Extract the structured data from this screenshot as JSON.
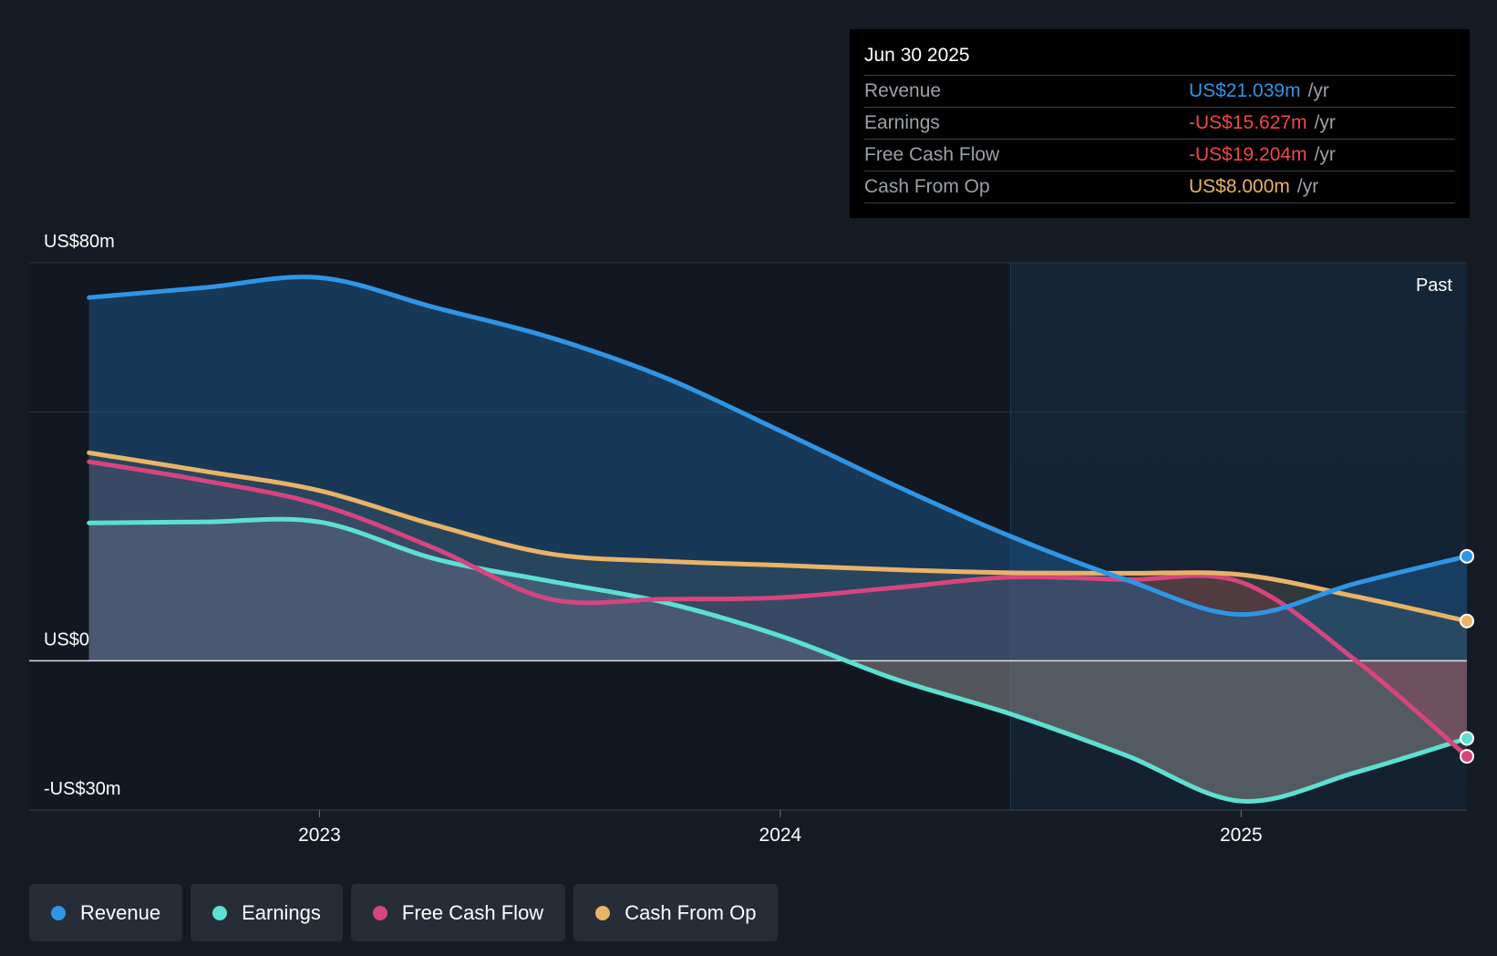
{
  "tooltip": {
    "date": "Jun 30 2025",
    "rows": [
      {
        "name": "Revenue",
        "value": "US$21.039m",
        "unit": "/yr",
        "color": "#2f95e6"
      },
      {
        "name": "Earnings",
        "value": "-US$15.627m",
        "unit": "/yr",
        "color": "#f0474d"
      },
      {
        "name": "Free Cash Flow",
        "value": "-US$19.204m",
        "unit": "/yr",
        "color": "#f0474d"
      },
      {
        "name": "Cash From Op",
        "value": "US$8.000m",
        "unit": "/yr",
        "color": "#e9b368"
      }
    ]
  },
  "legend": [
    {
      "label": "Revenue",
      "color": "#2f95e6"
    },
    {
      "label": "Earnings",
      "color": "#5ce0d2"
    },
    {
      "label": "Free Cash Flow",
      "color": "#d6457f"
    },
    {
      "label": "Cash From Op",
      "color": "#e9b368"
    }
  ],
  "chart_data": {
    "type": "area",
    "title": "",
    "y_labels": {
      "top": "US$80m",
      "zero": "US$0",
      "bottom": "-US$30m"
    },
    "ylim": [
      -30,
      80
    ],
    "xlim": [
      2022.37,
      2025.49
    ],
    "x_ticks": [
      2023,
      2024,
      2025
    ],
    "x_tick_labels": [
      "2023",
      "2024",
      "2025"
    ],
    "past_label": "Past",
    "past_start": 2024.5,
    "series": [
      {
        "name": "Earnings",
        "color": "#5ce0d2",
        "x": [
          2022.5,
          2022.75,
          2023.0,
          2023.25,
          2023.5,
          2023.75,
          2024.0,
          2024.25,
          2024.5,
          2024.75,
          2025.0,
          2025.25,
          2025.49
        ],
        "values": [
          27.7,
          27.9,
          27.9,
          20.5,
          16.0,
          11.7,
          5.0,
          -3.7,
          -10.7,
          -19.0,
          -28.2,
          -22.4,
          -15.6
        ]
      },
      {
        "name": "Free Cash Flow",
        "color": "#d6457f",
        "x": [
          2022.5,
          2022.75,
          2023.0,
          2023.25,
          2023.5,
          2023.75,
          2024.0,
          2024.25,
          2024.5,
          2024.75,
          2025.0,
          2025.25,
          2025.49
        ],
        "values": [
          40.0,
          36.2,
          31.4,
          22.6,
          12.4,
          12.4,
          12.7,
          14.7,
          16.8,
          16.3,
          15.8,
          0.0,
          -19.2
        ]
      },
      {
        "name": "Cash From Op",
        "color": "#e9b368",
        "x": [
          2022.5,
          2022.75,
          2023.0,
          2023.25,
          2023.5,
          2023.75,
          2024.0,
          2024.25,
          2024.5,
          2024.75,
          2025.0,
          2025.25,
          2025.49
        ],
        "values": [
          41.8,
          38.1,
          34.2,
          27.3,
          21.5,
          20.0,
          19.2,
          18.3,
          17.7,
          17.6,
          17.3,
          12.9,
          8.0
        ]
      },
      {
        "name": "Revenue",
        "color": "#2f95e6",
        "x": [
          2022.5,
          2022.75,
          2023.0,
          2023.25,
          2023.5,
          2023.75,
          2024.0,
          2024.25,
          2024.5,
          2024.75,
          2025.0,
          2025.25,
          2025.49
        ],
        "values": [
          73.0,
          75.0,
          77.0,
          71.0,
          65.0,
          56.9,
          46.2,
          35.2,
          25.0,
          16.3,
          9.3,
          15.6,
          21.0
        ]
      }
    ]
  }
}
